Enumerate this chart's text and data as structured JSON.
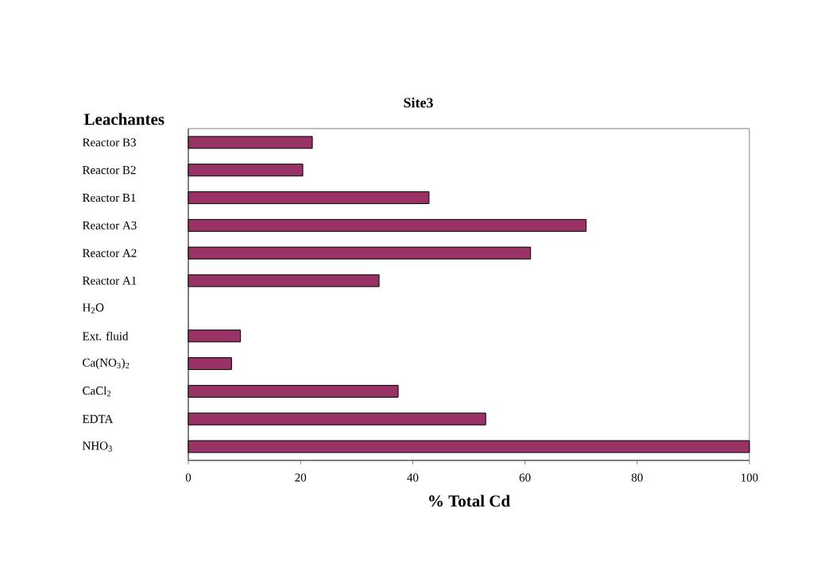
{
  "chart_data": {
    "type": "bar",
    "orientation": "horizontal",
    "title": "Site3",
    "ylabel": "Leachantes",
    "xlabel": "% Total Cd",
    "categories": [
      "Reactor B3",
      "Reactor B2",
      "Reactor B1",
      "Reactor A3",
      "Reactor A2",
      "Reactor A1",
      "H$_{2}$O",
      "Ext. fluid",
      "Ca(NO$_{3}$)$_{2}$",
      "CaCl$_{2}$",
      "EDTA",
      "NHO$_{3}$"
    ],
    "values": [
      22.1,
      20.4,
      42.9,
      70.9,
      61.0,
      34.0,
      null,
      9.3,
      7.7,
      37.4,
      53.0,
      100
    ],
    "color": "#993366",
    "xlim": [
      0,
      100
    ],
    "xticks": [
      0,
      20,
      40,
      60,
      80,
      100
    ]
  }
}
